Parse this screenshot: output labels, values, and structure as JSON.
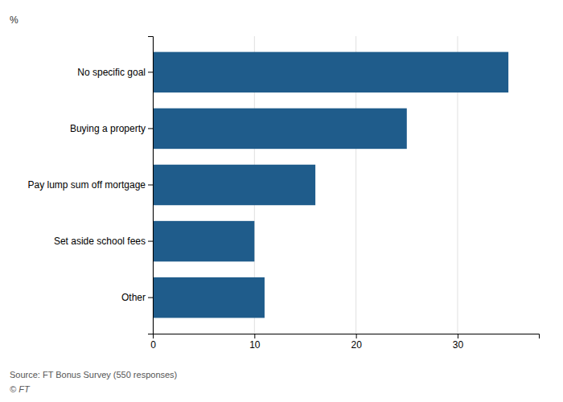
{
  "chart_data": {
    "type": "bar",
    "orientation": "horizontal",
    "categories": [
      "No specific goal",
      "Buying a property",
      "Pay lump sum off mortgage",
      "Set aside school fees",
      "Other"
    ],
    "values": [
      35,
      25,
      16,
      10,
      11
    ],
    "color": "#1f5c8b",
    "ylabel": "%",
    "xlim": [
      0,
      38
    ],
    "xticks": [
      0,
      10,
      20,
      30
    ],
    "grid": true,
    "source": "Source: FT Bonus Survey (550 responses)",
    "copyright": "© FT"
  }
}
